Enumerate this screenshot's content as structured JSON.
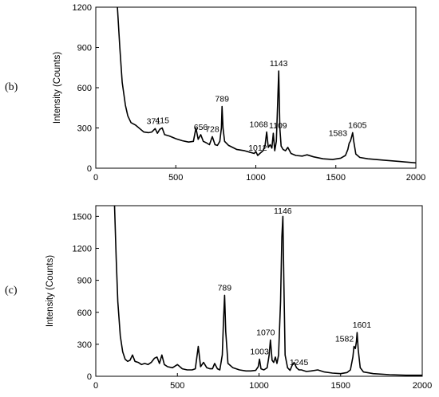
{
  "figure": {
    "panels": [
      {
        "label": "(b)"
      },
      {
        "label": "(c)"
      }
    ]
  },
  "chart_data": [
    {
      "type": "line",
      "panel": "(b)",
      "title": "",
      "xlabel": "",
      "ylabel": "Intensity (Counts)",
      "xlim": [
        0,
        2000
      ],
      "ylim": [
        0,
        1200
      ],
      "xticks": [
        0,
        500,
        1000,
        1500,
        2000
      ],
      "yticks": [
        0,
        300,
        600,
        900,
        1200
      ],
      "grid": false,
      "line_color": "#000000",
      "series": [
        {
          "x": [
            135,
            150,
            165,
            185,
            200,
            220,
            250,
            280,
            300,
            330,
            350,
            371,
            385,
            400,
            415,
            430,
            460,
            500,
            540,
            580,
            610,
            626,
            640,
            656,
            672,
            690,
            710,
            728,
            745,
            760,
            775,
            785,
            789,
            795,
            805,
            830,
            880,
            930,
            960,
            990,
            1000,
            1012,
            1025,
            1045,
            1058,
            1068,
            1078,
            1090,
            1100,
            1109,
            1118,
            1128,
            1136,
            1143,
            1150,
            1158,
            1170,
            1185,
            1200,
            1220,
            1250,
            1290,
            1320,
            1360,
            1420,
            1480,
            1530,
            1560,
            1575,
            1583,
            1592,
            1600,
            1605,
            1612,
            1625,
            1650,
            1700,
            1800,
            1900,
            2000
          ],
          "y": [
            1200,
            900,
            640,
            470,
            390,
            340,
            320,
            290,
            270,
            265,
            270,
            295,
            260,
            290,
            300,
            250,
            240,
            220,
            205,
            195,
            200,
            300,
            215,
            250,
            200,
            190,
            175,
            235,
            175,
            170,
            200,
            300,
            460,
            300,
            200,
            170,
            140,
            130,
            120,
            110,
            125,
            95,
            110,
            130,
            170,
            270,
            155,
            175,
            150,
            260,
            130,
            200,
            470,
            725,
            300,
            165,
            140,
            130,
            155,
            110,
            95,
            90,
            100,
            85,
            70,
            65,
            75,
            95,
            140,
            185,
            205,
            240,
            265,
            200,
            105,
            80,
            70,
            60,
            50,
            40
          ]
        }
      ],
      "peak_labels": [
        {
          "x": 371,
          "text": "371"
        },
        {
          "x": 415,
          "text": "415"
        },
        {
          "x": 656,
          "text": "656"
        },
        {
          "x": 728,
          "text": "728"
        },
        {
          "x": 789,
          "text": "789"
        },
        {
          "x": 1012,
          "text": "1012"
        },
        {
          "x": 1068,
          "text": "1068"
        },
        {
          "x": 1109,
          "text": "1109"
        },
        {
          "x": 1143,
          "text": "1143"
        },
        {
          "x": 1583,
          "text": "1583"
        },
        {
          "x": 1605,
          "text": "1605"
        }
      ]
    },
    {
      "type": "line",
      "panel": "(c)",
      "title": "",
      "xlabel": "",
      "ylabel": "Intensity (Counts)",
      "xlim": [
        0,
        2000
      ],
      "ylim": [
        0,
        1600
      ],
      "xticks": [
        0,
        500,
        1000,
        1500,
        2000
      ],
      "yticks": [
        0,
        300,
        600,
        900,
        1200,
        1500
      ],
      "grid": false,
      "line_color": "#000000",
      "series": [
        {
          "x": [
            115,
            125,
            135,
            150,
            165,
            180,
            195,
            210,
            225,
            240,
            260,
            280,
            300,
            320,
            340,
            360,
            375,
            390,
            405,
            420,
            440,
            470,
            500,
            530,
            560,
            590,
            610,
            628,
            642,
            660,
            680,
            700,
            715,
            728,
            745,
            760,
            775,
            782,
            789,
            796,
            810,
            840,
            880,
            920,
            950,
            980,
            995,
            1003,
            1012,
            1030,
            1050,
            1062,
            1070,
            1080,
            1090,
            1100,
            1110,
            1120,
            1132,
            1140,
            1146,
            1152,
            1160,
            1175,
            1190,
            1205,
            1215,
            1230,
            1245,
            1260,
            1290,
            1320,
            1360,
            1400,
            1450,
            1500,
            1540,
            1560,
            1575,
            1582,
            1590,
            1597,
            1601,
            1608,
            1620,
            1640,
            1700,
            1800,
            1900,
            2000
          ],
          "y": [
            1600,
            1100,
            700,
            380,
            230,
            160,
            140,
            150,
            200,
            140,
            130,
            110,
            120,
            110,
            130,
            170,
            180,
            120,
            200,
            110,
            90,
            80,
            110,
            70,
            60,
            60,
            70,
            280,
            90,
            130,
            80,
            70,
            70,
            120,
            70,
            60,
            200,
            500,
            760,
            420,
            120,
            80,
            60,
            50,
            50,
            55,
            90,
            160,
            70,
            60,
            80,
            200,
            340,
            150,
            130,
            180,
            120,
            200,
            700,
            1300,
            1500,
            900,
            200,
            80,
            55,
            110,
            130,
            80,
            60,
            60,
            45,
            50,
            60,
            40,
            30,
            25,
            35,
            60,
            180,
            280,
            260,
            330,
            410,
            250,
            80,
            40,
            25,
            15,
            10,
            10
          ]
        }
      ],
      "peak_labels": [
        {
          "x": 789,
          "text": "789"
        },
        {
          "x": 1003,
          "text": "1003"
        },
        {
          "x": 1070,
          "text": "1070"
        },
        {
          "x": 1146,
          "text": "1146"
        },
        {
          "x": 1245,
          "text": "1245"
        },
        {
          "x": 1582,
          "text": "1582"
        },
        {
          "x": 1601,
          "text": "1601"
        }
      ]
    }
  ]
}
